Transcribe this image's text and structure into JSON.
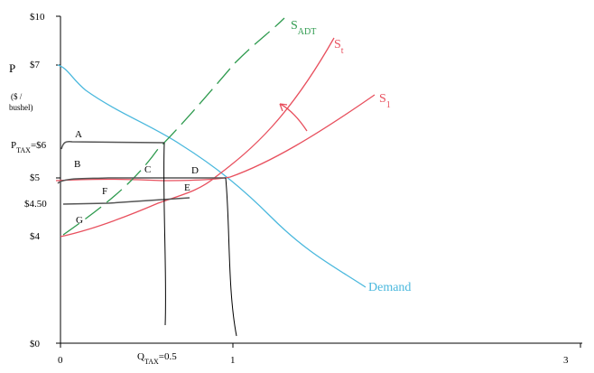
{
  "axes": {
    "y_title": "P",
    "y_unit_1": "($ /",
    "y_unit_2": "bushel)",
    "y_labels": [
      "$10",
      "$7",
      "$5",
      "$4.50",
      "$4",
      "$0"
    ],
    "p_tax": {
      "main": "P",
      "sub": "TAX",
      "rest": "=$6"
    },
    "x_labels": [
      "0",
      "1",
      "3"
    ],
    "q_tax": {
      "main": "Q",
      "sub": "TAX",
      "rest": "=0.5"
    }
  },
  "curves": {
    "s_adt": {
      "main": "S",
      "sub": "ADT"
    },
    "s_t": {
      "main": "S",
      "sub": "t"
    },
    "s_1": {
      "main": "S",
      "sub": "1"
    },
    "demand": "Demand"
  },
  "areas": [
    "A",
    "B",
    "C",
    "D",
    "E",
    "F",
    "G"
  ]
}
